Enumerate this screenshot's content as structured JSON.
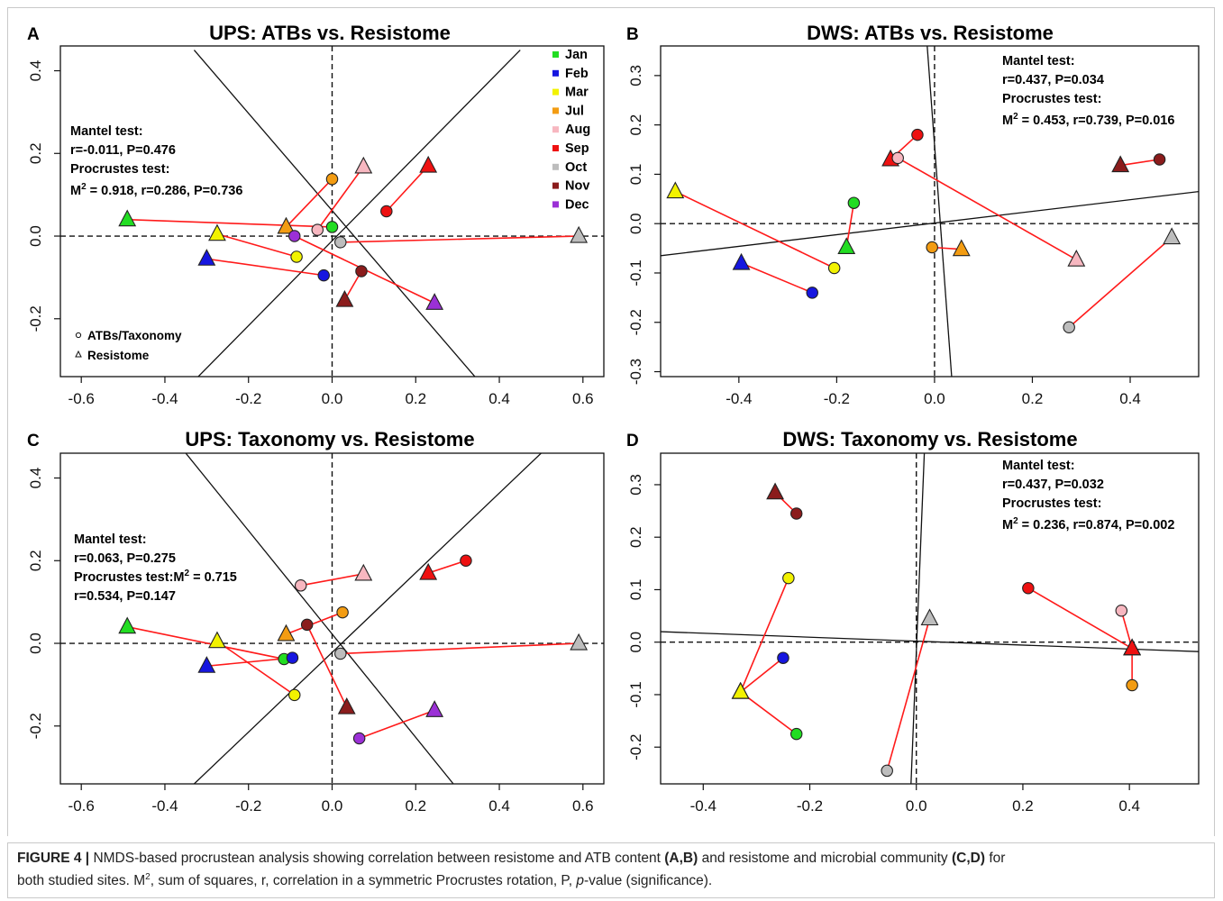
{
  "figure": {
    "caption": {
      "label": "FIGURE 4 |",
      "part1": " NMDS-based procrustean analysis showing correlation between resistome and ATB content ",
      "ref1": "(A,B)",
      "part2": " and resistome and microbial community ",
      "ref2": "(C,D)",
      "part3": " for",
      "line2a": "both studied sites. M",
      "line2sup": "2",
      "line2b": ", sum of squares, r, correlation in a symmetric Procrustes rotation, P, ",
      "line2italic": "p",
      "line2c": "-value (significance)."
    }
  },
  "legend_months": [
    {
      "label": "Jan",
      "color": "#22dd22"
    },
    {
      "label": "Feb",
      "color": "#1616e0"
    },
    {
      "label": "Mar",
      "color": "#f2f200"
    },
    {
      "label": "Jul",
      "color": "#f39c12"
    },
    {
      "label": "Aug",
      "color": "#f7b7c0"
    },
    {
      "label": "Sep",
      "color": "#ee1111"
    },
    {
      "label": "Oct",
      "color": "#bdbdbd"
    },
    {
      "label": "Nov",
      "color": "#8b1c1c"
    },
    {
      "label": "Dec",
      "color": "#9b30d6"
    }
  ],
  "shape_legend": {
    "circle": "ATBs/Taxonomy",
    "triangle": "Resistome"
  },
  "chart_data": [
    {
      "panel": "A",
      "type": "scatter",
      "title": "UPS: ATBs vs. Resistome",
      "xlim": [
        -0.65,
        0.65
      ],
      "ylim": [
        -0.34,
        0.46
      ],
      "xticks": [
        -0.6,
        -0.4,
        -0.2,
        0.0,
        0.2,
        0.4,
        0.6
      ],
      "xtick_labels": [
        "-0.6",
        "-0.4",
        "-0.2",
        "0.0",
        "0.2",
        "0.4",
        "0.6"
      ],
      "yticks": [
        -0.2,
        0.0,
        0.2,
        0.4
      ],
      "ytick_labels": [
        "-0.2",
        "0.0",
        "0.2",
        "0.4"
      ],
      "annotation": {
        "mantel": "Mantel test:",
        "mantel_stats": "r=-0.011, P=0.476",
        "procrustes": "Procrustes test:",
        "m2_prefix": "M",
        "m2_sup": "2",
        "m2_rest": " = 0.918, r=0.286, P=0.736"
      },
      "axis_lines": [
        [
          [
            -0.33,
            0.45
          ],
          [
            0.35,
            -0.35
          ]
        ],
        [
          [
            -0.33,
            -0.35
          ],
          [
            0.45,
            0.45
          ]
        ]
      ],
      "pairs": [
        {
          "month": "Jan",
          "circle": [
            0.0,
            0.022
          ],
          "triangle": [
            -0.49,
            0.04
          ]
        },
        {
          "month": "Feb",
          "circle": [
            -0.02,
            -0.095
          ],
          "triangle": [
            -0.3,
            -0.055
          ]
        },
        {
          "month": "Mar",
          "circle": [
            -0.085,
            -0.05
          ],
          "triangle": [
            -0.275,
            0.005
          ]
        },
        {
          "month": "Jul",
          "circle": [
            0.0,
            0.138
          ],
          "triangle": [
            -0.11,
            0.022
          ]
        },
        {
          "month": "Aug",
          "circle": [
            -0.035,
            0.015
          ],
          "triangle": [
            0.075,
            0.168
          ]
        },
        {
          "month": "Sep",
          "circle": [
            0.13,
            0.06
          ],
          "triangle": [
            0.23,
            0.17
          ]
        },
        {
          "month": "Oct",
          "circle": [
            0.02,
            -0.015
          ],
          "triangle": [
            0.59,
            0.0
          ]
        },
        {
          "month": "Nov",
          "circle": [
            0.07,
            -0.085
          ],
          "triangle": [
            0.03,
            -0.155
          ]
        },
        {
          "month": "Dec",
          "circle": [
            -0.09,
            0.0
          ],
          "triangle": [
            0.245,
            -0.162
          ]
        }
      ]
    },
    {
      "panel": "B",
      "type": "scatter",
      "title": "DWS: ATBs vs. Resistome",
      "xlim": [
        -0.56,
        0.54
      ],
      "ylim": [
        -0.31,
        0.36
      ],
      "xticks": [
        -0.4,
        -0.2,
        0.0,
        0.2,
        0.4
      ],
      "xtick_labels": [
        "-0.4",
        "-0.2",
        "0.0",
        "0.2",
        "0.4"
      ],
      "yticks": [
        -0.3,
        -0.2,
        -0.1,
        0.0,
        0.1,
        0.2,
        0.3
      ],
      "ytick_labels": [
        "-0.3",
        "-0.2",
        "-0.1",
        "0.0",
        "0.1",
        "0.2",
        "0.3"
      ],
      "annotation": {
        "mantel": "Mantel test:",
        "mantel_stats": "r=0.437, P=0.034",
        "procrustes": "Procrustes test:",
        "m2_prefix": "M",
        "m2_sup": "2",
        "m2_rest": " = 0.453, r=0.739, P=0.016"
      },
      "axis_lines": [
        [
          [
            -0.56,
            -0.065
          ],
          [
            0.54,
            0.065
          ]
        ],
        [
          [
            -0.015,
            0.36
          ],
          [
            0.035,
            -0.31
          ]
        ]
      ],
      "pairs": [
        {
          "month": "Jan",
          "circle": [
            -0.165,
            0.042
          ],
          "triangle": [
            -0.18,
            -0.048
          ]
        },
        {
          "month": "Feb",
          "circle": [
            -0.25,
            -0.14
          ],
          "triangle": [
            -0.395,
            -0.08
          ]
        },
        {
          "month": "Mar",
          "circle": [
            -0.205,
            -0.09
          ],
          "triangle": [
            -0.53,
            0.065
          ]
        },
        {
          "month": "Jul",
          "circle": [
            -0.005,
            -0.048
          ],
          "triangle": [
            0.055,
            -0.052
          ]
        },
        {
          "month": "Aug",
          "circle": [
            -0.075,
            0.133
          ],
          "triangle": [
            0.29,
            -0.073
          ]
        },
        {
          "month": "Sep",
          "circle": [
            -0.035,
            0.18
          ],
          "triangle": [
            -0.09,
            0.13
          ]
        },
        {
          "month": "Oct",
          "circle": [
            0.275,
            -0.21
          ],
          "triangle": [
            0.485,
            -0.028
          ]
        },
        {
          "month": "Nov",
          "circle": [
            0.46,
            0.13
          ],
          "triangle": [
            0.38,
            0.118
          ]
        }
      ]
    },
    {
      "panel": "C",
      "type": "scatter",
      "title": "UPS: Taxonomy vs. Resistome",
      "xlim": [
        -0.65,
        0.65
      ],
      "ylim": [
        -0.34,
        0.46
      ],
      "xticks": [
        -0.6,
        -0.4,
        -0.2,
        0.0,
        0.2,
        0.4,
        0.6
      ],
      "xtick_labels": [
        "-0.6",
        "-0.4",
        "-0.2",
        "0.0",
        "0.2",
        "0.4",
        "0.6"
      ],
      "yticks": [
        -0.2,
        0.0,
        0.2,
        0.4
      ],
      "ytick_labels": [
        "-0.2",
        "0.0",
        "0.2",
        "0.4"
      ],
      "annotation": {
        "mantel": "Mantel test:",
        "mantel_stats": "r=0.063, P=0.275",
        "procrustes": "Procrustes test:",
        "m2_prefix": "M",
        "m2_sup": "2",
        "m2_rest": " = 0.715",
        "extra": "r=0.534, P=0.147"
      },
      "axis_lines": [
        [
          [
            -0.33,
            -0.34
          ],
          [
            0.5,
            0.46
          ]
        ],
        [
          [
            -0.35,
            0.46
          ],
          [
            0.29,
            -0.34
          ]
        ]
      ],
      "pairs": [
        {
          "month": "Jan",
          "circle": [
            -0.115,
            -0.038
          ],
          "triangle": [
            -0.49,
            0.04
          ]
        },
        {
          "month": "Feb",
          "circle": [
            -0.095,
            -0.035
          ],
          "triangle": [
            -0.3,
            -0.055
          ]
        },
        {
          "month": "Mar",
          "circle": [
            -0.09,
            -0.125
          ],
          "triangle": [
            -0.275,
            0.005
          ]
        },
        {
          "month": "Jul",
          "circle": [
            0.025,
            0.075
          ],
          "triangle": [
            -0.11,
            0.022
          ]
        },
        {
          "month": "Aug",
          "circle": [
            -0.075,
            0.14
          ],
          "triangle": [
            0.075,
            0.168
          ]
        },
        {
          "month": "Sep",
          "circle": [
            0.32,
            0.2
          ],
          "triangle": [
            0.23,
            0.17
          ]
        },
        {
          "month": "Oct",
          "circle": [
            0.02,
            -0.025
          ],
          "triangle": [
            0.59,
            0.0
          ]
        },
        {
          "month": "Nov",
          "circle": [
            -0.06,
            0.045
          ],
          "triangle": [
            0.035,
            -0.155
          ]
        },
        {
          "month": "Dec",
          "circle": [
            0.065,
            -0.23
          ],
          "triangle": [
            0.245,
            -0.162
          ]
        }
      ]
    },
    {
      "panel": "D",
      "type": "scatter",
      "title": "DWS: Taxonomy vs. Resistome",
      "xlim": [
        -0.48,
        0.53
      ],
      "ylim": [
        -0.27,
        0.36
      ],
      "xticks": [
        -0.4,
        -0.2,
        0.0,
        0.2,
        0.4
      ],
      "xtick_labels": [
        "-0.4",
        "-0.2",
        "0.0",
        "0.2",
        "0.4"
      ],
      "yticks": [
        -0.2,
        -0.1,
        0.0,
        0.1,
        0.2,
        0.3
      ],
      "ytick_labels": [
        "-0.2",
        "-0.1",
        "0.0",
        "0.1",
        "0.2",
        "0.3"
      ],
      "annotation": {
        "mantel": "Mantel test:",
        "mantel_stats": "r=0.437, P=0.032",
        "procrustes": "Procrustes test:",
        "m2_prefix": "M",
        "m2_sup": "2",
        "m2_rest": " = 0.236, r=0.874, P=0.002"
      },
      "axis_lines": [
        [
          [
            -0.48,
            0.02
          ],
          [
            0.53,
            -0.018
          ]
        ],
        [
          [
            -0.01,
            -0.27
          ],
          [
            0.015,
            0.36
          ]
        ]
      ],
      "pairs": [
        {
          "month": "Jan",
          "circle": [
            -0.225,
            -0.175
          ],
          "triangle": [
            -0.33,
            -0.095
          ]
        },
        {
          "month": "Feb",
          "circle": [
            -0.25,
            -0.03
          ],
          "triangle": [
            -0.33,
            -0.095
          ]
        },
        {
          "month": "Mar",
          "circle": [
            -0.24,
            0.122
          ],
          "triangle": [
            -0.33,
            -0.095
          ]
        },
        {
          "month": "Jul",
          "circle": [
            0.405,
            -0.082
          ],
          "triangle": [
            0.405,
            -0.012
          ]
        },
        {
          "month": "Aug",
          "circle": [
            0.385,
            0.06
          ],
          "triangle": [
            0.405,
            -0.012
          ]
        },
        {
          "month": "Sep",
          "circle": [
            0.21,
            0.103
          ],
          "triangle": [
            0.405,
            -0.012
          ]
        },
        {
          "month": "Oct",
          "circle": [
            -0.055,
            -0.245
          ],
          "triangle": [
            0.025,
            0.045
          ]
        },
        {
          "month": "Nov",
          "circle": [
            -0.225,
            0.245
          ],
          "triangle": [
            -0.265,
            0.285
          ]
        }
      ]
    }
  ]
}
